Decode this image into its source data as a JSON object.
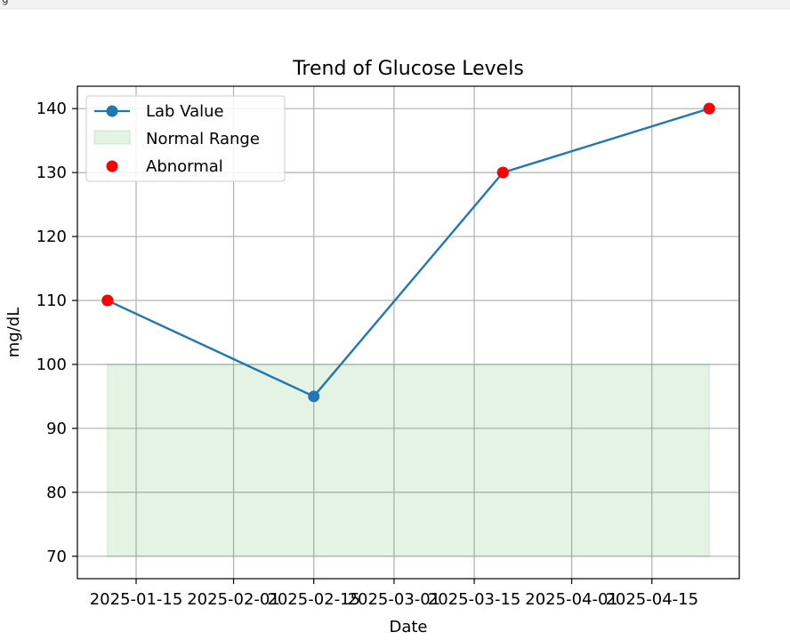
{
  "top_strip": {
    "fragment_text": "g"
  },
  "chart_data": {
    "type": "line",
    "title": "Trend of Glucose Levels",
    "xlabel": "Date",
    "ylabel": "mg/dL",
    "x": [
      "2025-01-10",
      "2025-02-15",
      "2025-03-20",
      "2025-04-25"
    ],
    "series": [
      {
        "name": "Lab Value",
        "values": [
          110,
          95,
          130,
          140
        ],
        "color": "#1f77b4"
      }
    ],
    "abnormal": {
      "name": "Abnormal",
      "x": [
        "2025-01-10",
        "2025-03-20",
        "2025-04-25"
      ],
      "values": [
        110,
        130,
        140
      ],
      "color": "#ff0000"
    },
    "normal_range": {
      "name": "Normal Range",
      "low": 70,
      "high": 100,
      "x_start": "2025-01-10",
      "x_end": "2025-04-25",
      "color": "#2ca02c"
    },
    "xticks": [
      "2025-01-15",
      "2025-02-01",
      "2025-02-15",
      "2025-03-01",
      "2025-03-15",
      "2025-04-01",
      "2025-04-15"
    ],
    "yticks": [
      70,
      80,
      90,
      100,
      110,
      120,
      130,
      140
    ],
    "xlim": [
      "2025-01-04.75",
      "2025-04-30.25"
    ],
    "ylim": [
      66.5,
      143.5
    ],
    "grid": true,
    "legend_position": "upper-left"
  }
}
